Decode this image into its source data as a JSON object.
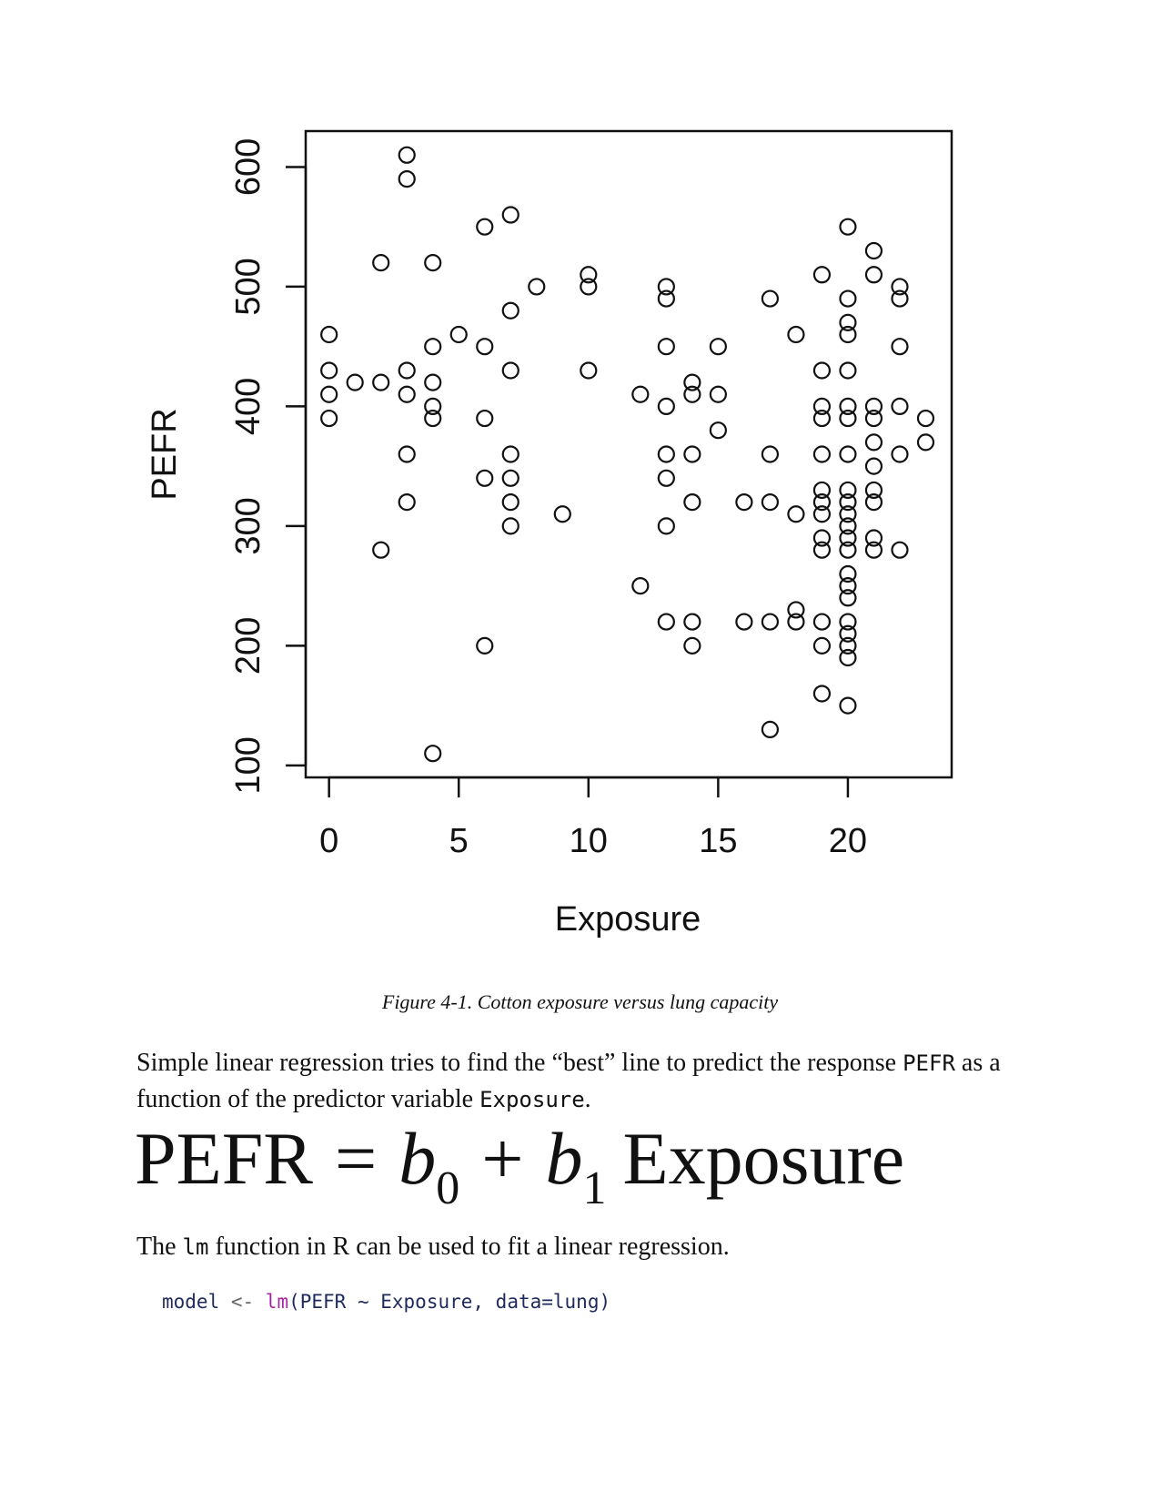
{
  "chart_data": {
    "type": "scatter",
    "xlabel": "Exposure",
    "ylabel": "PEFR",
    "xlim": [
      -0.9,
      24
    ],
    "ylim": [
      90,
      630
    ],
    "xticks": [
      "0",
      "5",
      "10",
      "15",
      "20"
    ],
    "yticks": [
      "100",
      "200",
      "300",
      "400",
      "500",
      "600"
    ],
    "points": [
      [
        0,
        460
      ],
      [
        0,
        430
      ],
      [
        0,
        410
      ],
      [
        0,
        390
      ],
      [
        1,
        420
      ],
      [
        2,
        520
      ],
      [
        2,
        420
      ],
      [
        2,
        280
      ],
      [
        3,
        610
      ],
      [
        3,
        590
      ],
      [
        3,
        430
      ],
      [
        3,
        410
      ],
      [
        3,
        360
      ],
      [
        3,
        320
      ],
      [
        4,
        520
      ],
      [
        4,
        450
      ],
      [
        4,
        420
      ],
      [
        4,
        400
      ],
      [
        4,
        390
      ],
      [
        4,
        110
      ],
      [
        5,
        460
      ],
      [
        6,
        550
      ],
      [
        6,
        450
      ],
      [
        6,
        390
      ],
      [
        6,
        340
      ],
      [
        6,
        200
      ],
      [
        7,
        560
      ],
      [
        7,
        480
      ],
      [
        7,
        430
      ],
      [
        7,
        360
      ],
      [
        7,
        340
      ],
      [
        7,
        320
      ],
      [
        7,
        300
      ],
      [
        8,
        500
      ],
      [
        9,
        310
      ],
      [
        10,
        510
      ],
      [
        10,
        500
      ],
      [
        10,
        430
      ],
      [
        12,
        410
      ],
      [
        12,
        250
      ],
      [
        13,
        500
      ],
      [
        13,
        490
      ],
      [
        13,
        450
      ],
      [
        13,
        400
      ],
      [
        13,
        360
      ],
      [
        13,
        340
      ],
      [
        13,
        300
      ],
      [
        13,
        220
      ],
      [
        14,
        420
      ],
      [
        14,
        410
      ],
      [
        14,
        360
      ],
      [
        14,
        320
      ],
      [
        14,
        220
      ],
      [
        14,
        200
      ],
      [
        15,
        450
      ],
      [
        15,
        410
      ],
      [
        15,
        380
      ],
      [
        16,
        320
      ],
      [
        16,
        220
      ],
      [
        17,
        490
      ],
      [
        17,
        360
      ],
      [
        17,
        320
      ],
      [
        17,
        220
      ],
      [
        17,
        130
      ],
      [
        18,
        460
      ],
      [
        18,
        310
      ],
      [
        18,
        230
      ],
      [
        18,
        220
      ],
      [
        19,
        510
      ],
      [
        19,
        430
      ],
      [
        19,
        400
      ],
      [
        19,
        390
      ],
      [
        19,
        360
      ],
      [
        19,
        330
      ],
      [
        19,
        320
      ],
      [
        19,
        310
      ],
      [
        19,
        290
      ],
      [
        19,
        280
      ],
      [
        19,
        220
      ],
      [
        19,
        200
      ],
      [
        19,
        160
      ],
      [
        20,
        550
      ],
      [
        20,
        490
      ],
      [
        20,
        470
      ],
      [
        20,
        460
      ],
      [
        20,
        430
      ],
      [
        20,
        400
      ],
      [
        20,
        390
      ],
      [
        20,
        360
      ],
      [
        20,
        330
      ],
      [
        20,
        320
      ],
      [
        20,
        310
      ],
      [
        20,
        300
      ],
      [
        20,
        290
      ],
      [
        20,
        280
      ],
      [
        20,
        260
      ],
      [
        20,
        250
      ],
      [
        20,
        240
      ],
      [
        20,
        220
      ],
      [
        20,
        210
      ],
      [
        20,
        200
      ],
      [
        20,
        190
      ],
      [
        20,
        150
      ],
      [
        21,
        530
      ],
      [
        21,
        510
      ],
      [
        21,
        400
      ],
      [
        21,
        390
      ],
      [
        21,
        370
      ],
      [
        21,
        350
      ],
      [
        21,
        330
      ],
      [
        21,
        320
      ],
      [
        21,
        290
      ],
      [
        21,
        280
      ],
      [
        22,
        500
      ],
      [
        22,
        490
      ],
      [
        22,
        450
      ],
      [
        22,
        400
      ],
      [
        22,
        360
      ],
      [
        22,
        280
      ],
      [
        23,
        390
      ],
      [
        23,
        370
      ]
    ]
  },
  "figure_caption": "Figure 4-1. Cotton exposure versus lung capacity",
  "paragraph1": {
    "before": "Simple linear regression tries to find the “best” line to predict the response ",
    "code1": "PEFR",
    "middle": " as a function of the predictor variable ",
    "code2": "Exposure",
    "after": "."
  },
  "equation": {
    "lhs": "PEFR",
    "eq": "=",
    "b": "b",
    "sub0": "0",
    "plus": "+",
    "sub1": "1",
    "var": "Exposure"
  },
  "paragraph2": {
    "before": "The ",
    "code": "lm",
    "after": " function in R can be used to fit a linear regression."
  },
  "code_block": {
    "obj": "model",
    "assign": " <- ",
    "fn": "lm",
    "args_open": "(",
    "args": "PEFR ~ Exposure, data=lung",
    "args_close": ")"
  }
}
